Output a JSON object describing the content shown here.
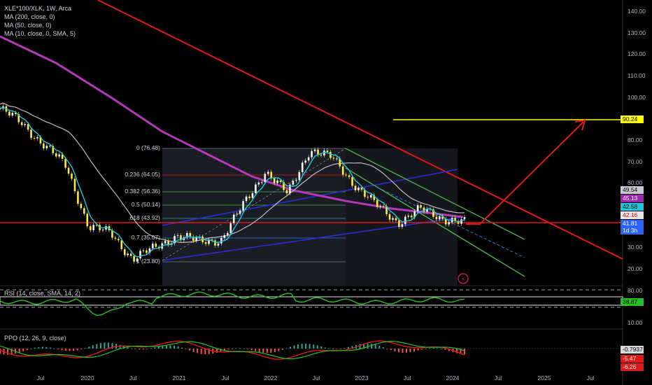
{
  "header": {
    "symbol_line": "XLE*100/XLK, 1W, Arca",
    "ma200": "MA (200, close, 0)",
    "ma50": "MA (50, close, 0)",
    "ma10": "MA (10, close, 0, SMA, 5)"
  },
  "rsi_panel": {
    "label": "RSI (14, close, SMA, 14, 2)",
    "value": "38.87",
    "ticks": [
      "80.00",
      "10.00"
    ]
  },
  "ppo_panel": {
    "label": "PPO (12, 26, 9, close)",
    "values": [
      "-0.7937",
      "-5.47",
      "-6.26"
    ]
  },
  "price_axis": {
    "ticks": [
      "140.00",
      "130.00",
      "120.00",
      "110.00",
      "100.00",
      "80.00",
      "70.00",
      "60.00",
      "30.00",
      "20.00"
    ]
  },
  "price_tags": [
    {
      "value": "90.24",
      "bg": "#ffff00",
      "fg": "#000000"
    },
    {
      "value": "49.54",
      "bg": "#c8c8d0",
      "fg": "#000000"
    },
    {
      "value": "45.13",
      "bg": "#9c27b0",
      "fg": "#ffffff"
    },
    {
      "value": "42.58",
      "bg": "#26c6da",
      "fg": "#000000"
    },
    {
      "value": "42.16",
      "bg": "#e8e8e8",
      "fg": "#d50000"
    },
    {
      "value": "41.81",
      "bg": "#2962ff",
      "fg": "#ffffff"
    },
    {
      "value": "1d 3h",
      "bg": "#2962ff",
      "fg": "#ffffff"
    }
  ],
  "fib_levels": [
    {
      "label": "0 (76.48)"
    },
    {
      "label": "0.236 (64.05)"
    },
    {
      "label": "0.382 (56.36)"
    },
    {
      "label": "0.5 (50.14)"
    },
    {
      "label": ".618 (43.92)"
    },
    {
      "label": "0.7 (35.07)"
    },
    {
      "label": "1 (23.80)"
    }
  ],
  "time_axis": [
    "Jul",
    "2020",
    "Jul",
    "2021",
    "Jul",
    "2022",
    "Jul",
    "2023",
    "Jul",
    "2024",
    "Jul",
    "2025",
    "Jul"
  ],
  "colors": {
    "ma200": "#b03ab8",
    "ma50": "#c9b8c0",
    "ma10": "#26c6da",
    "resistance": "#e01818",
    "channel": "#4caf50",
    "wedge": "#2b2bd6",
    "target": "#ffff00",
    "rsi": "#22c322"
  },
  "chart_data": {
    "type": "line",
    "title": "XLE*100/XLK, 1W, Arca",
    "x": [
      "2019-04",
      "2019-07",
      "2019-10",
      "2020-01",
      "2020-04",
      "2020-07",
      "2020-10",
      "2021-01",
      "2021-04",
      "2021-07",
      "2021-10",
      "2022-01",
      "2022-04",
      "2022-07",
      "2022-10",
      "2022-11",
      "2023-01",
      "2023-04",
      "2023-07",
      "2023-10",
      "2024-01",
      "2024-03"
    ],
    "series": [
      {
        "name": "XLE*100/XLK",
        "values": [
          95,
          88,
          78,
          68,
          40,
          37,
          25,
          30,
          36,
          33,
          34,
          50,
          66,
          55,
          76,
          72,
          60,
          50,
          42,
          48,
          44,
          41.81
        ]
      }
    ],
    "ylim": [
      10,
      145
    ],
    "log_scale": false,
    "annotations": {
      "target": 90.24,
      "horizontal_support": 42.16,
      "fib_retracement": [
        76.48,
        64.05,
        56.36,
        50.14,
        43.92,
        35.07,
        23.8
      ]
    }
  }
}
